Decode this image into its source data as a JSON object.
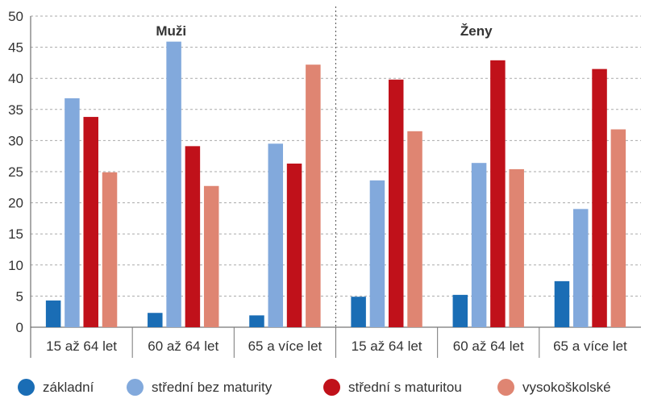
{
  "chart_data": {
    "type": "bar",
    "groups": [
      "Muži",
      "Ženy"
    ],
    "categories": [
      "15 až 64 let",
      "60 až 64 let",
      "65 a více let"
    ],
    "ylim": [
      0,
      50
    ],
    "yticks": [
      0,
      5,
      10,
      15,
      20,
      25,
      30,
      35,
      40,
      45,
      50
    ],
    "grid": true,
    "legend_position": "bottom",
    "series": [
      {
        "name": "základní",
        "color": "#1a6db5",
        "values": {
          "Muži": [
            4.3,
            2.3,
            1.9
          ],
          "Ženy": [
            4.9,
            5.2,
            7.4
          ]
        }
      },
      {
        "name": "střední bez maturity",
        "color": "#82a9dc",
        "values": {
          "Muži": [
            36.8,
            45.9,
            29.5
          ],
          "Ženy": [
            23.6,
            26.4,
            19.0
          ]
        }
      },
      {
        "name": "střední s maturitou",
        "color": "#c0111a",
        "values": {
          "Muži": [
            33.8,
            29.1,
            26.3
          ],
          "Ženy": [
            39.8,
            42.9,
            41.5
          ]
        }
      },
      {
        "name": "vysokoškolské",
        "color": "#df8572",
        "values": {
          "Muži": [
            24.9,
            22.7,
            42.2
          ],
          "Ženy": [
            31.5,
            25.4,
            31.8
          ]
        }
      }
    ]
  }
}
